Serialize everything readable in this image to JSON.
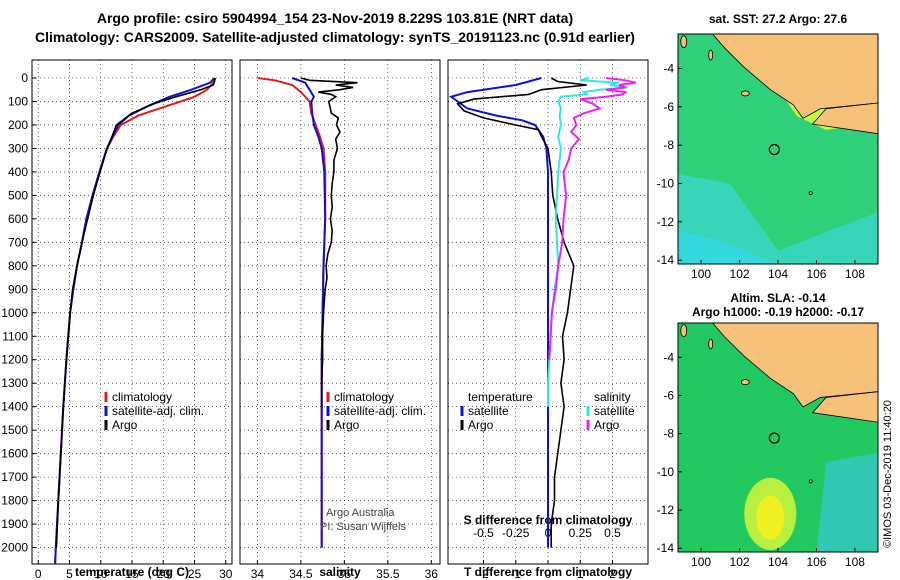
{
  "header": {
    "title_line1": "Argo profile: csiro 5904994_154 23-Nov-2019 8.229S 103.81E (NRT data)",
    "title_line2": "Climatology: CARS2009. Satellite-adjusted climatology: synTS_20191123.nc (0.91d earlier)"
  },
  "copyright": "©IMOS 03-Dec-2019 11:40:20",
  "colors": {
    "climatology": "#e41a1c",
    "satellite": "#1010d0",
    "argo": "#000000",
    "salinity_satellite": "#33e6e6",
    "salinity_argo": "#ee22ee"
  },
  "chart_data": [
    {
      "type": "line",
      "panel": "temperature",
      "xlabel": "temperature (deg C)",
      "ylabel": "",
      "xlim": [
        -1,
        31
      ],
      "ylim": [
        2070,
        0
      ],
      "xticks": [
        0,
        5,
        10,
        15,
        20,
        25,
        30
      ],
      "yticks": [
        0,
        100,
        200,
        300,
        400,
        500,
        600,
        700,
        800,
        900,
        1000,
        1100,
        1200,
        1300,
        1400,
        1500,
        1600,
        1700,
        1800,
        1900,
        2000
      ],
      "grid": true,
      "legend": {
        "position": "bottom-right",
        "entries": [
          "climatology",
          "satellite-adj. clim.",
          "Argo"
        ]
      },
      "series": [
        {
          "name": "climatology",
          "depth": [
            0,
            20,
            50,
            80,
            120,
            160,
            200,
            250,
            300,
            400,
            500,
            600,
            700,
            800,
            900,
            1000,
            1200,
            1400,
            1600,
            1800,
            2000,
            2070
          ],
          "values": [
            28.3,
            28.0,
            27.0,
            25.0,
            20.5,
            16.0,
            13.2,
            12.0,
            11.0,
            9.8,
            8.7,
            7.7,
            7.0,
            6.2,
            5.6,
            5.1,
            4.5,
            4.0,
            3.6,
            3.2,
            2.8,
            2.7
          ]
        },
        {
          "name": "satellite-adj. clim.",
          "depth": [
            0,
            20,
            50,
            80,
            120,
            160,
            200,
            250,
            300,
            400,
            500,
            600,
            700,
            800,
            900,
            1000,
            1200,
            1400,
            1600,
            1800,
            2000,
            2070
          ],
          "values": [
            28.2,
            27.5,
            24.5,
            21.0,
            17.5,
            14.5,
            12.8,
            11.9,
            11.0,
            9.8,
            8.7,
            7.7,
            7.0,
            6.2,
            5.6,
            5.1,
            4.5,
            4.0,
            3.6,
            3.2,
            2.8,
            2.7
          ]
        },
        {
          "name": "Argo",
          "depth": [
            0,
            15,
            30,
            50,
            80,
            110,
            150,
            200,
            250,
            300,
            400,
            500,
            600,
            700,
            800,
            900,
            1000,
            1100,
            1200,
            1400,
            1600,
            1800,
            2000
          ],
          "values": [
            28.3,
            28.2,
            28.0,
            26.0,
            22.0,
            18.5,
            15.0,
            12.5,
            11.8,
            11.0,
            9.9,
            8.8,
            7.9,
            7.0,
            6.2,
            5.5,
            5.1,
            4.8,
            4.5,
            4.0,
            3.6,
            3.2,
            2.9
          ]
        }
      ]
    },
    {
      "type": "line",
      "panel": "salinity",
      "xlabel": "salinity",
      "ylabel": "",
      "xlim": [
        33.8,
        36.1
      ],
      "ylim": [
        2070,
        0
      ],
      "xticks": [
        34,
        34.5,
        35,
        35.5,
        36
      ],
      "grid": true,
      "legend": {
        "position": "bottom-right",
        "entries": [
          "climatology",
          "satellite-adj. clim.",
          "Argo"
        ]
      },
      "annotations": [
        "Argo Australia",
        "PI: Susan Wijffels"
      ],
      "series": [
        {
          "name": "climatology",
          "depth": [
            0,
            10,
            30,
            60,
            100,
            150,
            200,
            250,
            300,
            400,
            600,
            800,
            1000,
            1200,
            1400,
            1600,
            1800,
            2000
          ],
          "values": [
            34.0,
            34.2,
            34.4,
            34.5,
            34.6,
            34.62,
            34.67,
            34.72,
            34.76,
            34.78,
            34.78,
            34.76,
            34.75,
            34.74,
            34.74,
            34.74,
            34.74,
            34.74
          ]
        },
        {
          "name": "satellite-adj. clim.",
          "depth": [
            0,
            20,
            50,
            80,
            100,
            150,
            200,
            250,
            300,
            400,
            600,
            800,
            1000,
            1200,
            1400,
            1600,
            1800,
            2000
          ],
          "values": [
            34.4,
            34.55,
            34.6,
            34.65,
            34.62,
            34.63,
            34.65,
            34.7,
            34.74,
            34.77,
            34.78,
            34.76,
            34.75,
            34.74,
            34.74,
            34.74,
            34.74,
            34.74
          ]
        },
        {
          "name": "Argo",
          "depth": [
            0,
            10,
            20,
            30,
            40,
            50,
            60,
            70,
            80,
            100,
            130,
            150,
            170,
            200,
            230,
            260,
            300,
            350,
            400,
            450,
            500,
            550,
            600,
            650,
            700,
            750,
            800,
            850,
            900,
            950,
            1000,
            1100,
            1200,
            1300,
            1400
          ],
          "values": [
            34.5,
            34.6,
            35.15,
            34.9,
            35.1,
            34.95,
            34.7,
            34.85,
            34.9,
            34.82,
            34.84,
            34.85,
            34.93,
            34.91,
            34.95,
            34.9,
            34.92,
            34.88,
            34.88,
            34.86,
            34.85,
            34.86,
            34.84,
            34.86,
            34.85,
            34.81,
            34.79,
            34.8,
            34.78,
            34.77,
            34.76,
            34.75,
            34.75,
            34.74,
            34.74
          ]
        }
      ]
    },
    {
      "type": "line",
      "panel": "difference",
      "xlabel": "T difference from climatology",
      "xlabel_top": "S difference from climatology",
      "ylabel": "",
      "xlim": [
        -3.1,
        3.1
      ],
      "ylim": [
        2070,
        0
      ],
      "xticks_bottom": [
        -2,
        -1,
        0,
        1,
        2
      ],
      "xticks_top": [
        "-0.5",
        "-0.25",
        "0",
        "0.25",
        "0.5"
      ],
      "grid": true,
      "legend": {
        "position": "bottom",
        "temperature_title": "temperature",
        "salinity_title": "salinity",
        "temperature_entries": [
          "satellite",
          "Argo"
        ],
        "salinity_entries": [
          "satellite",
          "Argo"
        ]
      },
      "series": [
        {
          "name": "temperature satellite",
          "depth": [
            0,
            30,
            60,
            80,
            100,
            130,
            160,
            180,
            200,
            250,
            300,
            400,
            600,
            800,
            1000,
            1200,
            1400,
            1600,
            1800,
            2000
          ],
          "values": [
            -0.2,
            -1.0,
            -2.5,
            -3.0,
            -2.8,
            -2.5,
            -1.6,
            -0.8,
            -0.4,
            -0.15,
            -0.05,
            0.0,
            0.0,
            0.0,
            0.0,
            0.0,
            0.0,
            0.0,
            0.0,
            0.0
          ]
        },
        {
          "name": "temperature Argo",
          "depth": [
            0,
            15,
            30,
            50,
            70,
            90,
            110,
            140,
            170,
            200,
            220,
            250,
            300,
            400,
            500,
            600,
            700,
            800,
            900,
            1000,
            1100,
            1200,
            1300,
            1400,
            1500,
            1600,
            1700,
            1800,
            1900,
            2000
          ],
          "values": [
            0.1,
            0.3,
            1.2,
            -0.2,
            -0.6,
            -2.3,
            -2.8,
            -2.6,
            -2.0,
            -1.0,
            -0.3,
            -0.2,
            0.0,
            0.1,
            0.15,
            0.3,
            0.5,
            0.8,
            0.7,
            0.6,
            0.45,
            0.5,
            0.4,
            0.5,
            0.4,
            0.3,
            0.2,
            0.2,
            0.1,
            0.1
          ]
        },
        {
          "name": "salinity satellite",
          "depth": [
            0,
            10,
            20,
            30,
            40,
            50,
            60,
            70,
            80,
            100,
            130,
            160,
            200,
            250,
            300,
            400,
            500,
            600,
            700,
            800,
            900,
            1000,
            1100,
            1200,
            1300,
            1400
          ],
          "values": [
            0.32,
            0.25,
            0.55,
            0.48,
            0.62,
            0.4,
            0.28,
            0.3,
            0.1,
            0.08,
            0.1,
            0.09,
            0.1,
            0.08,
            0.1,
            0.08,
            0.07,
            0.06,
            0.07,
            0.08,
            0.05,
            0.03,
            0.02,
            0.01,
            0.0,
            0.0
          ]
        },
        {
          "name": "salinity Argo",
          "depth": [
            0,
            10,
            20,
            30,
            40,
            50,
            60,
            70,
            80,
            90,
            110,
            130,
            150,
            170,
            200,
            230,
            260,
            300,
            350,
            400,
            500,
            600,
            700,
            800,
            900,
            1000,
            1100,
            1200
          ],
          "values": [
            0.45,
            0.6,
            0.68,
            0.55,
            0.6,
            0.45,
            0.6,
            0.58,
            0.45,
            0.25,
            0.35,
            0.4,
            0.28,
            0.2,
            0.22,
            0.18,
            0.24,
            0.18,
            0.16,
            0.12,
            0.14,
            0.12,
            0.11,
            0.08,
            0.06,
            0.03,
            0.02,
            0.01
          ]
        }
      ]
    },
    {
      "type": "heatmap",
      "panel": "sst-map",
      "title": "sat. SST: 27.2 Argo: 27.6",
      "xlim": [
        98.8,
        109.2
      ],
      "ylim": [
        -14.2,
        -2.2
      ],
      "xticks": [
        100,
        102,
        104,
        106,
        108
      ],
      "yticks": [
        -4,
        -6,
        -8,
        -10,
        -12,
        -14
      ],
      "argo_position": {
        "lon": 103.81,
        "lat": -8.229
      }
    },
    {
      "type": "heatmap",
      "panel": "sla-map",
      "title": "Altim. SLA: -0.14",
      "subtitle": "Argo h1000: -0.19 h2000: -0.17",
      "xlim": [
        98.8,
        109.2
      ],
      "ylim": [
        -14.2,
        -2.2
      ],
      "xticks": [
        100,
        102,
        104,
        106,
        108
      ],
      "yticks": [
        -4,
        -6,
        -8,
        -10,
        -12,
        -14
      ],
      "argo_position": {
        "lon": 103.81,
        "lat": -8.229
      }
    }
  ]
}
